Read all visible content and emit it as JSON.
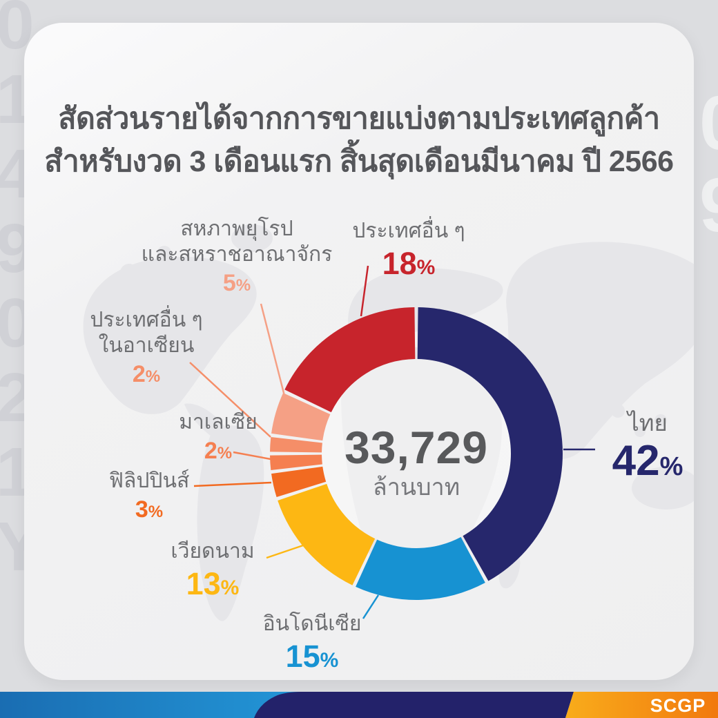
{
  "title": {
    "line1": "สัดส่วนรายได้จากการขายแบ่งตามประเทศลูกค้า",
    "line2": "สำหรับงวด 3 เดือนแรก สิ้นสุดเดือนมีนาคม ปี 2566"
  },
  "chart_data": {
    "type": "pie",
    "style": "donut",
    "center_value": "33,729",
    "center_unit": "ล้านบาท",
    "percent_symbol": "%",
    "start_angle_deg": 0,
    "direction": "clockwise",
    "segments": [
      {
        "id": "thailand",
        "label": "ไทย",
        "value": 42,
        "display": "42",
        "color": "#26276C"
      },
      {
        "id": "indonesia",
        "label": "อินโดนีเซีย",
        "value": 15,
        "display": "15",
        "color": "#1792D2"
      },
      {
        "id": "vietnam",
        "label": "เวียดนาม",
        "value": 13,
        "display": "13",
        "color": "#FDB713"
      },
      {
        "id": "philippines",
        "label": "ฟิลิปปินส์",
        "value": 3,
        "display": "3",
        "color": "#F26A21"
      },
      {
        "id": "malaysia",
        "label": "มาเลเซีย",
        "value": 2,
        "display": "2",
        "color": "#F57F50"
      },
      {
        "id": "other_asean",
        "label": "ประเทศอื่น ๆ ในอาเซียน",
        "label_line1": "ประเทศอื่น ๆ",
        "label_line2": "ในอาเซียน",
        "value": 2,
        "display": "2",
        "color": "#F58E68"
      },
      {
        "id": "eu_uk",
        "label": "สหภาพยุโรป และสหราชอาณาจักร",
        "label_line1": "สหภาพยุโรป",
        "label_line2": "และสหราชอาณาจักร",
        "value": 5,
        "display": "5",
        "color": "#F5A085"
      },
      {
        "id": "others",
        "label": "ประเทศอื่น ๆ",
        "value": 18,
        "display": "18",
        "color": "#C7242C"
      }
    ]
  },
  "footer": {
    "logo": "SCGP",
    "brand_colors": {
      "blue": "#1F8BCB",
      "navy": "#23226A",
      "orange": "#F28C12"
    }
  },
  "watermark": {
    "left": "0\n1\n4\n9\n0\n2\n1\nY",
    "right": "0\n9"
  }
}
